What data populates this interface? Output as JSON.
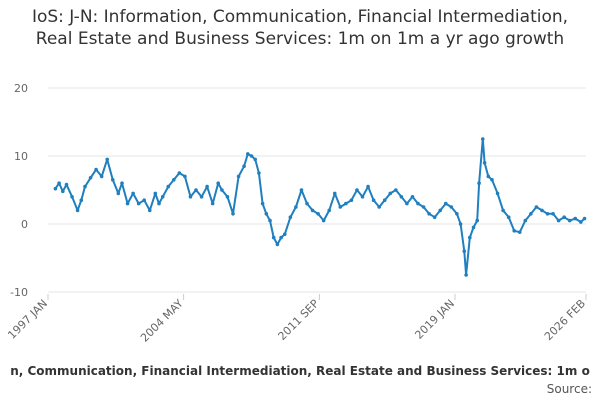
{
  "chart_data": {
    "type": "line",
    "title": "IoS: J-N: Information, Communication, Financial Intermediation, Real Estate and Business Services: 1m on 1m a yr ago growth",
    "legend_text": "n, Communication, Financial Intermediation, Real Estate and Business Services: 1m o",
    "source_label": "Source:",
    "xlabel": "",
    "ylabel": "",
    "ylim": [
      -10,
      20
    ],
    "yticks": [
      "20",
      "10",
      "0",
      "-10"
    ],
    "ytick_values": [
      20,
      10,
      0,
      -10
    ],
    "xticks": [
      "1997 JAN",
      "2004 MAY",
      "2011 SEP",
      "2019 JAN",
      "2026 FEB"
    ],
    "xtick_values": [
      1997.0,
      2004.33,
      2011.67,
      2019.0,
      2026.08
    ],
    "xlim": [
      1997.0,
      2026.08
    ],
    "grid": true,
    "series": [
      {
        "color": "#1f7fbf",
        "x": [
          1997.4,
          1997.6,
          1997.8,
          1998.0,
          1998.3,
          1998.6,
          1998.8,
          1999.0,
          1999.3,
          1999.6,
          1999.9,
          2000.2,
          2000.5,
          2000.8,
          2001.0,
          2001.3,
          2001.6,
          2001.9,
          2002.2,
          2002.5,
          2002.8,
          2003.0,
          2003.2,
          2003.5,
          2003.8,
          2004.1,
          2004.4,
          2004.7,
          2005.0,
          2005.3,
          2005.6,
          2005.9,
          2006.2,
          2006.4,
          2006.7,
          2007.0,
          2007.3,
          2007.6,
          2007.8,
          2008.0,
          2008.2,
          2008.4,
          2008.6,
          2008.8,
          2009.0,
          2009.2,
          2009.4,
          2009.6,
          2009.8,
          2010.1,
          2010.4,
          2010.7,
          2011.0,
          2011.3,
          2011.6,
          2011.9,
          2012.2,
          2012.5,
          2012.8,
          2013.1,
          2013.4,
          2013.7,
          2014.0,
          2014.3,
          2014.6,
          2014.9,
          2015.2,
          2015.5,
          2015.8,
          2016.1,
          2016.4,
          2016.7,
          2017.0,
          2017.3,
          2017.6,
          2017.9,
          2018.2,
          2018.5,
          2018.8,
          2019.1,
          2019.3,
          2019.5,
          2019.6,
          2019.8,
          2020.0,
          2020.2,
          2020.3,
          2020.5,
          2020.6,
          2020.8,
          2021.0,
          2021.3,
          2021.6,
          2021.9,
          2022.2,
          2022.5,
          2022.8,
          2023.1,
          2023.4,
          2023.7,
          2024.0,
          2024.3,
          2024.6,
          2024.9,
          2025.2,
          2025.5,
          2025.8,
          2026.0
        ],
        "values": [
          5.2,
          6.0,
          4.8,
          5.8,
          4.0,
          2.0,
          3.5,
          5.5,
          6.8,
          8.0,
          7.0,
          9.5,
          6.5,
          4.5,
          6.0,
          3.0,
          4.5,
          3.0,
          3.5,
          2.0,
          4.5,
          3.0,
          4.0,
          5.5,
          6.5,
          7.5,
          7.0,
          4.0,
          5.0,
          4.0,
          5.5,
          3.0,
          6.0,
          5.0,
          4.0,
          1.5,
          7.0,
          8.5,
          10.3,
          10.0,
          9.5,
          7.5,
          3.0,
          1.5,
          0.5,
          -2.0,
          -3.0,
          -2.0,
          -1.5,
          1.0,
          2.5,
          5.0,
          3.0,
          2.0,
          1.5,
          0.5,
          2.0,
          4.5,
          2.5,
          3.0,
          3.5,
          5.0,
          4.0,
          5.5,
          3.5,
          2.5,
          3.5,
          4.5,
          5.0,
          4.0,
          3.0,
          4.0,
          3.0,
          2.5,
          1.5,
          1.0,
          2.0,
          3.0,
          2.5,
          1.5,
          0.0,
          -4.0,
          -7.5,
          -2.0,
          -0.5,
          0.5,
          6.0,
          12.5,
          9.0,
          7.0,
          6.5,
          4.5,
          2.0,
          1.0,
          -1.0,
          -1.2,
          0.5,
          1.5,
          2.5,
          2.0,
          1.5,
          1.5,
          0.5,
          1.0,
          0.5,
          0.8,
          0.3,
          0.8
        ]
      }
    ]
  }
}
